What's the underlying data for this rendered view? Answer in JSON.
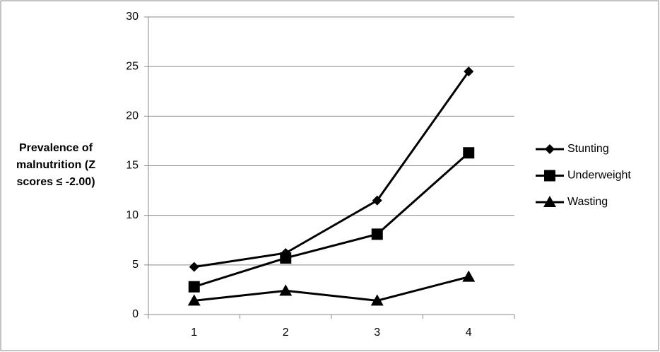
{
  "chart_data": {
    "type": "line",
    "y_label": "Prevalence of malnutrition  (Z scores ≤ -2.00)",
    "categories": [
      "1",
      "2",
      "3",
      "4"
    ],
    "series": [
      {
        "name": "Stunting",
        "color": "#000000",
        "marker": "diamond",
        "values": [
          4.8,
          6.2,
          11.5,
          24.5
        ]
      },
      {
        "name": "Underweight",
        "color": "#000000",
        "marker": "square",
        "values": [
          2.8,
          5.7,
          8.1,
          16.3
        ]
      },
      {
        "name": "Wasting",
        "color": "#000000",
        "marker": "triangle",
        "values": [
          1.4,
          2.4,
          1.4,
          3.8
        ]
      }
    ],
    "ylim": [
      0,
      30
    ],
    "yticks": [
      0,
      5,
      10,
      15,
      20,
      25,
      30
    ],
    "grid": true,
    "legend": "right"
  }
}
